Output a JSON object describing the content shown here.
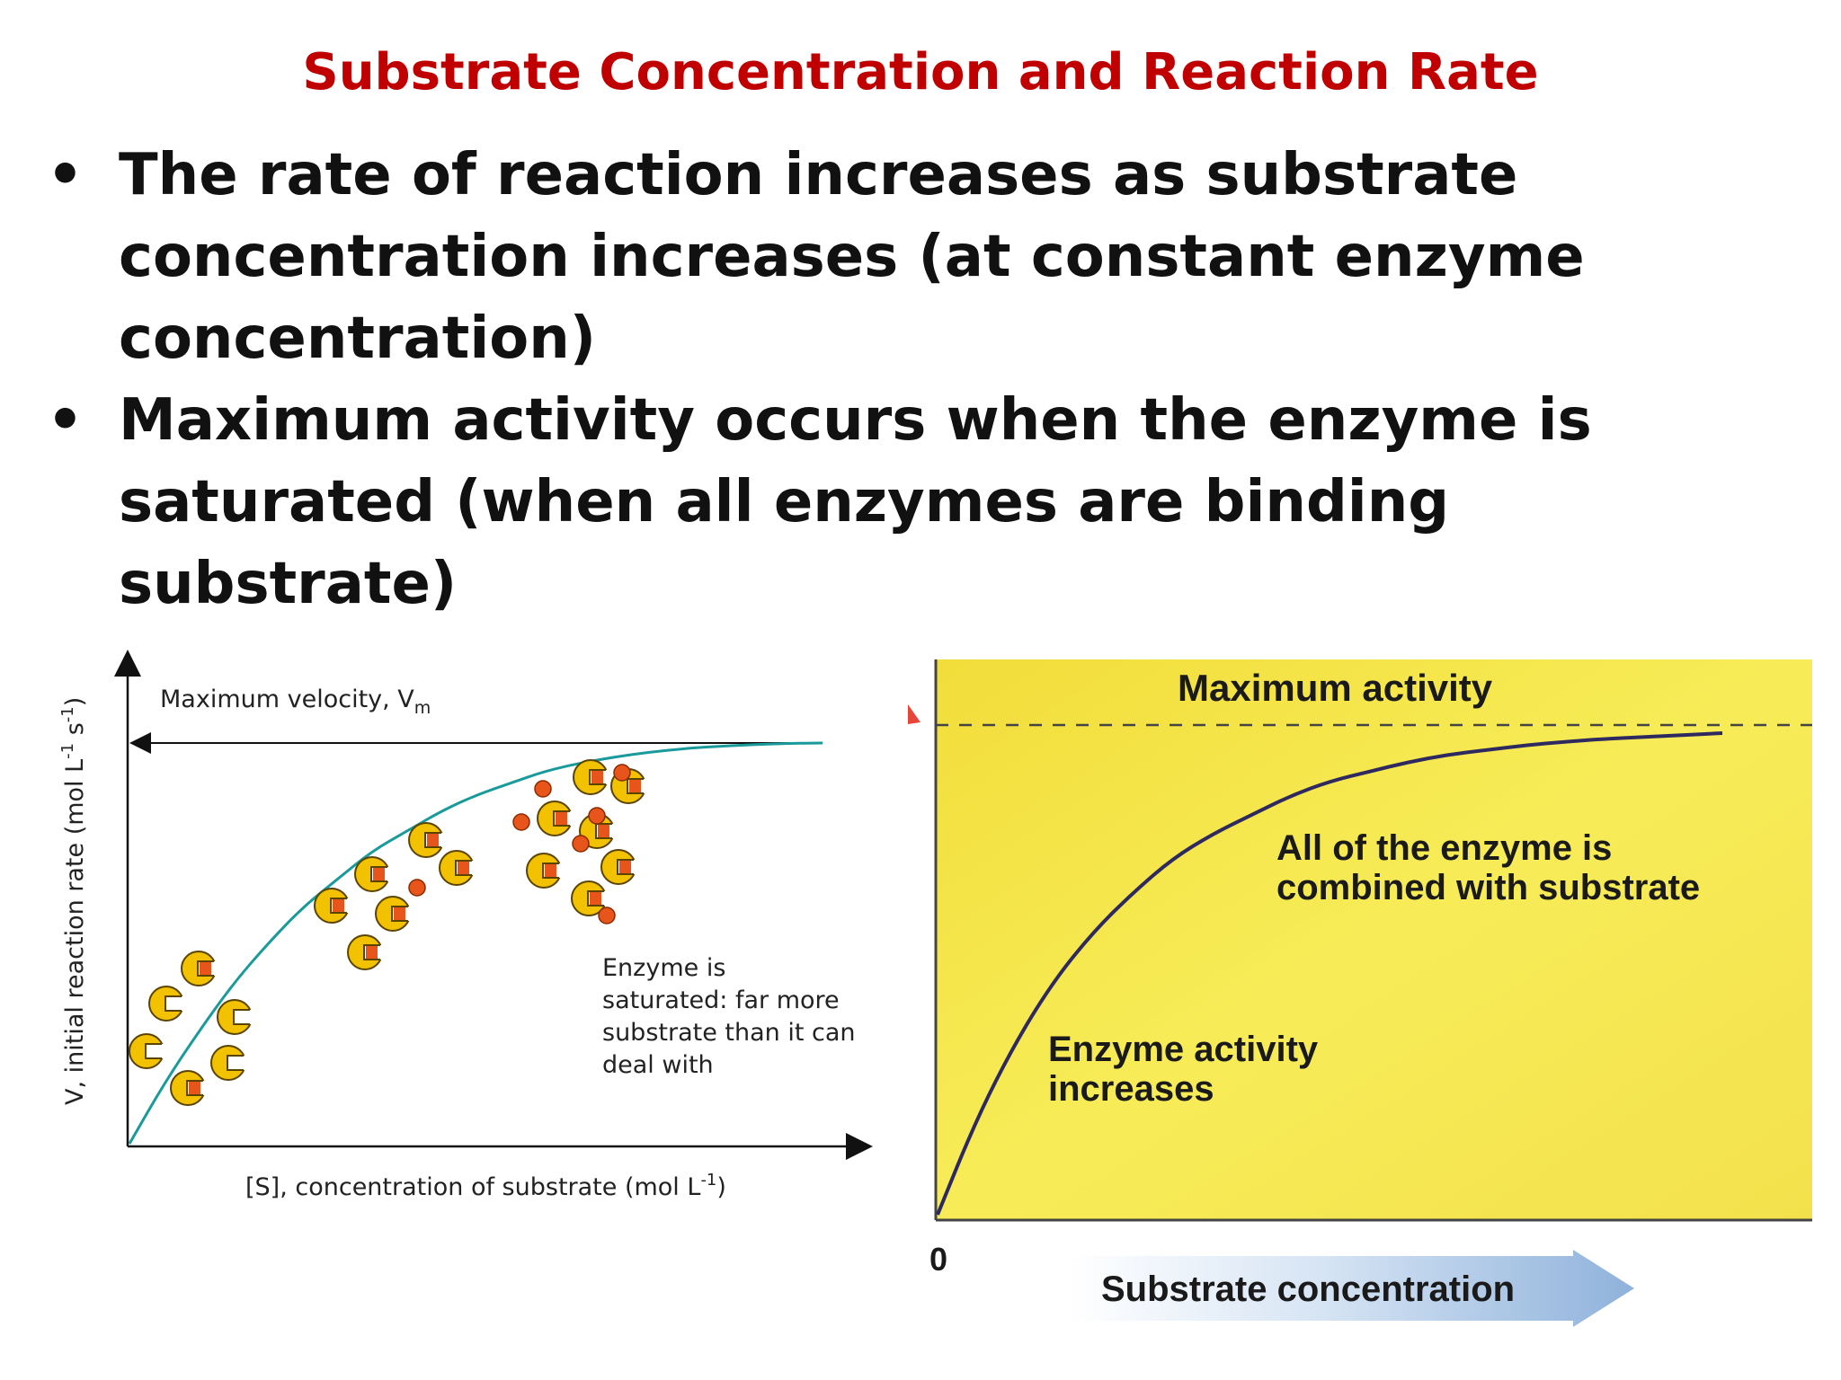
{
  "slide": {
    "title": "Substrate Concentration and Reaction Rate",
    "bullets": [
      "The rate of reaction increases as substrate concentration increases (at constant enzyme concentration)",
      "Maximum activity  occurs when the enzyme is saturated (when all enzymes are binding substrate)"
    ],
    "bullet_symbol": "•",
    "title_color": "#c00000"
  },
  "chart_data": [
    {
      "type": "line",
      "curve": "saturation",
      "x_shape": [
        0,
        0.05,
        0.1,
        0.15,
        0.2,
        0.25,
        0.3,
        0.35,
        0.4,
        0.45,
        0.5,
        0.55,
        0.6,
        0.65,
        0.7,
        0.75,
        0.8,
        0.85,
        0.9,
        0.95,
        1.0
      ],
      "y_shape": [
        0.0,
        0.15,
        0.28,
        0.4,
        0.5,
        0.59,
        0.66,
        0.73,
        0.78,
        0.83,
        0.87,
        0.9,
        0.93,
        0.95,
        0.965,
        0.977,
        0.986,
        0.992,
        0.996,
        0.999,
        1.0
      ],
      "annotations": {
        "max_velocity": "Maximum velocity, V",
        "max_velocity_sub": "m",
        "saturated_note": [
          "Enzyme is",
          "saturated: far more",
          "substrate than it can",
          "deal with"
        ]
      },
      "xlabel": "[S], concentration of substrate (mol L",
      "xlabel_sup": "-1",
      "xlabel_end": ")",
      "ylabel": "V, initial reaction rate (mol L",
      "ylabel_sup": "-1",
      "ylabel_mid": " s",
      "ylabel_sup2": "-1",
      "ylabel_end": ")",
      "line_color": "#1a9a9a",
      "enzyme_color": "#f2c200",
      "substrate_color": "#e8551a"
    },
    {
      "type": "line",
      "curve": "saturation",
      "x_shape": [
        0,
        0.05,
        0.1,
        0.15,
        0.2,
        0.25,
        0.3,
        0.35,
        0.4,
        0.45,
        0.5,
        0.55,
        0.6,
        0.65,
        0.7,
        0.75,
        0.8,
        0.85,
        0.9,
        0.95,
        1.0
      ],
      "y_shape": [
        0.0,
        0.2,
        0.36,
        0.49,
        0.59,
        0.67,
        0.74,
        0.79,
        0.83,
        0.87,
        0.9,
        0.92,
        0.94,
        0.955,
        0.965,
        0.975,
        0.982,
        0.988,
        0.992,
        0.996,
        1.0
      ],
      "labels": {
        "maximum_activity": "Maximum activity",
        "combined": [
          "All of the enzyme is",
          "combined with substrate"
        ],
        "increases": [
          "Enzyme activity",
          "increases"
        ],
        "origin": "0",
        "xlabel": "Substrate concentration"
      },
      "background_color": "#f5e640",
      "line_color": "#2e2a60"
    }
  ]
}
